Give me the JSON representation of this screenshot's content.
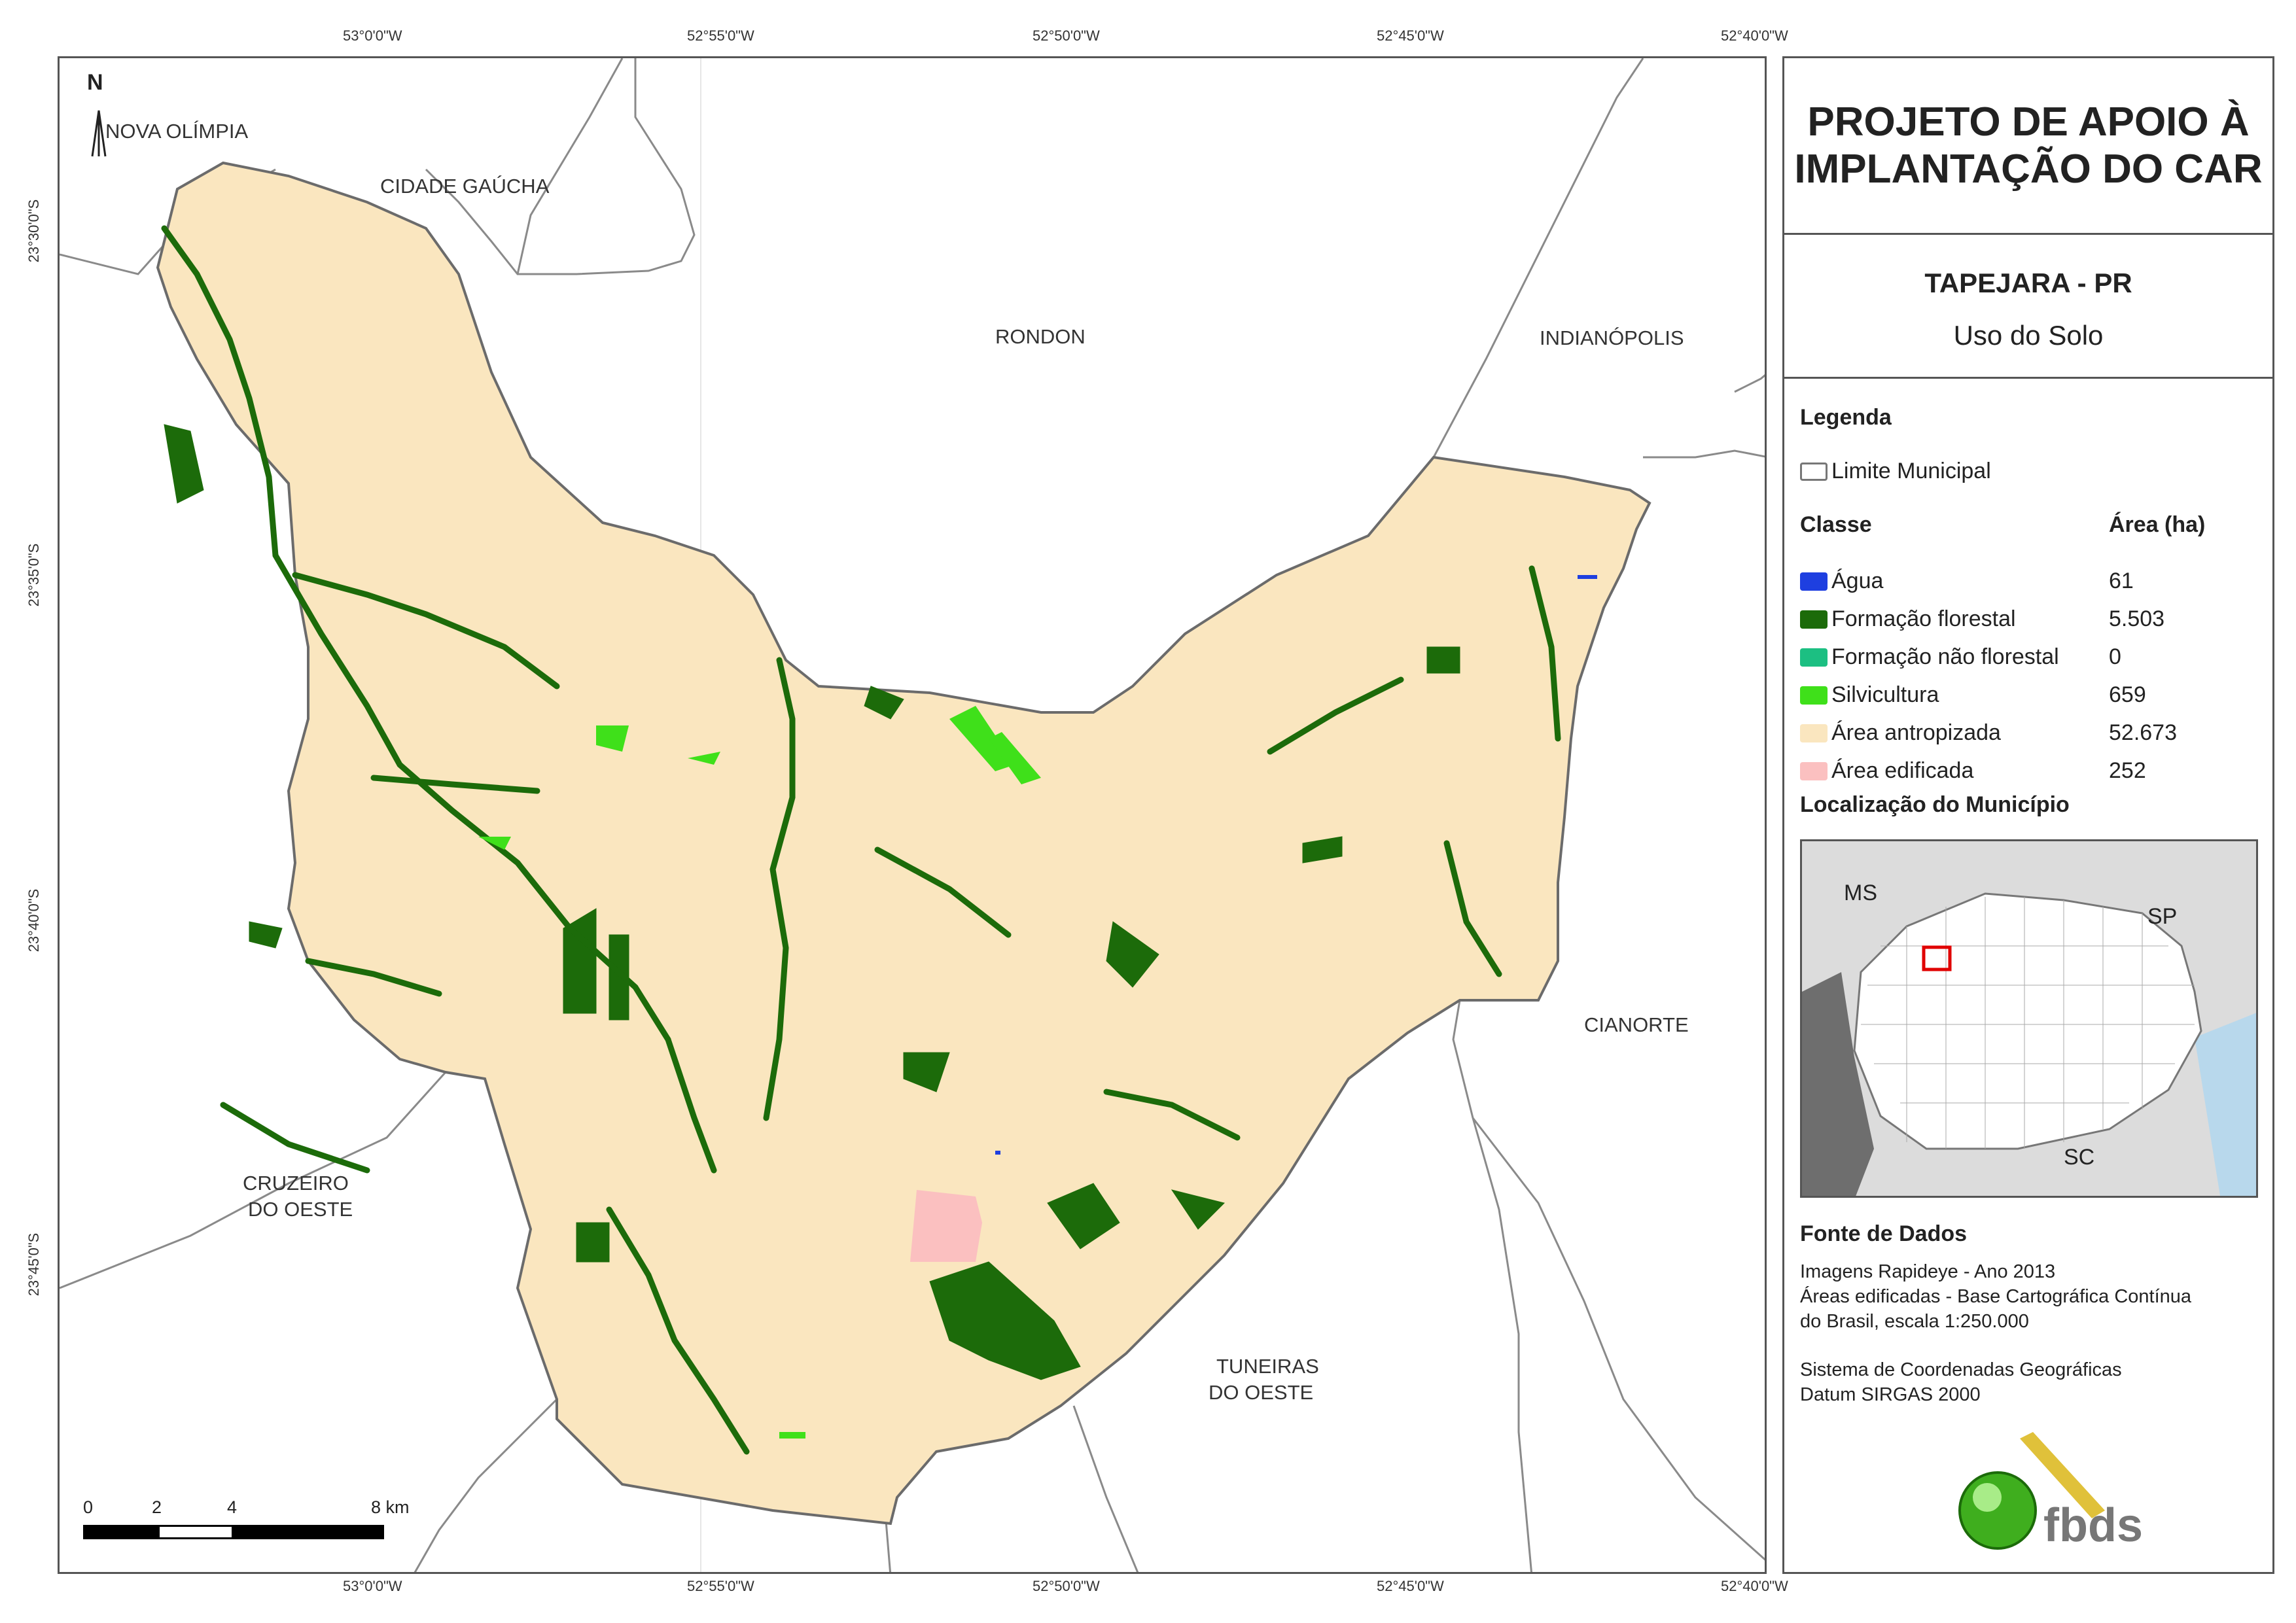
{
  "map": {
    "north_label": "N",
    "top_coords": [
      "53°0'0\"W",
      "52°55'0\"W",
      "52°50'0\"W",
      "52°45'0\"W",
      "52°40'0\"W"
    ],
    "bottom_coords": [
      "53°0'0\"W",
      "52°55'0\"W",
      "52°50'0\"W",
      "52°45'0\"W",
      "52°40'0\"W"
    ],
    "left_coords": [
      "23°30'0\"S",
      "23°35'0\"S",
      "23°40'0\"S",
      "23°45'0\"S"
    ],
    "municipalities": {
      "nova_olimpia": "NOVA OLÍMPIA",
      "cidade_gaucha": "CIDADE GAÚCHA",
      "rondon": "RONDON",
      "indianopolis": "INDIANÓPOLIS",
      "cianorte": "CIANORTE",
      "cruzeiro_1": "CRUZEIRO",
      "cruzeiro_2": "DO OESTE",
      "tuneiras_1": "TUNEIRAS",
      "tuneiras_2": "DO OESTE"
    },
    "scale": {
      "labels": [
        "0",
        "2",
        "4",
        "8 km"
      ],
      "unit": "km"
    }
  },
  "panel": {
    "title_1": "PROJETO DE APOIO À",
    "title_2": "IMPLANTAÇÃO DO CAR",
    "municipality": "TAPEJARA - PR",
    "theme": "Uso do Solo",
    "legend_heading": "Legenda",
    "boundary_label": "Limite Municipal",
    "class_heading": "Classe",
    "area_heading": "Área (ha)",
    "classes": [
      {
        "name": "Água",
        "area": "61",
        "color": "#1e3fe0"
      },
      {
        "name": "Formação florestal",
        "area": "5.503",
        "color": "#1c6b0a"
      },
      {
        "name": "Formação não florestal",
        "area": "0",
        "color": "#1cbf82"
      },
      {
        "name": "Silvicultura",
        "area": "659",
        "color": "#3fe01a"
      },
      {
        "name": "Área antropizada",
        "area": "52.673",
        "color": "#fae6bf"
      },
      {
        "name": "Área edificada",
        "area": "252",
        "color": "#fbc0c0"
      }
    ],
    "location_heading": "Localização do Município",
    "location_labels": {
      "ms": "MS",
      "sp": "SP",
      "sc": "SC"
    },
    "source_heading": "Fonte de Dados",
    "source_lines": [
      "Imagens Rapideye - Ano 2013",
      "Áreas edificadas - Base Cartográfica Contínua",
      "do Brasil, escala 1:250.000",
      "Sistema de Coordenadas Geográficas",
      "Datum SIRGAS 2000"
    ],
    "logo_text": "fbds"
  }
}
